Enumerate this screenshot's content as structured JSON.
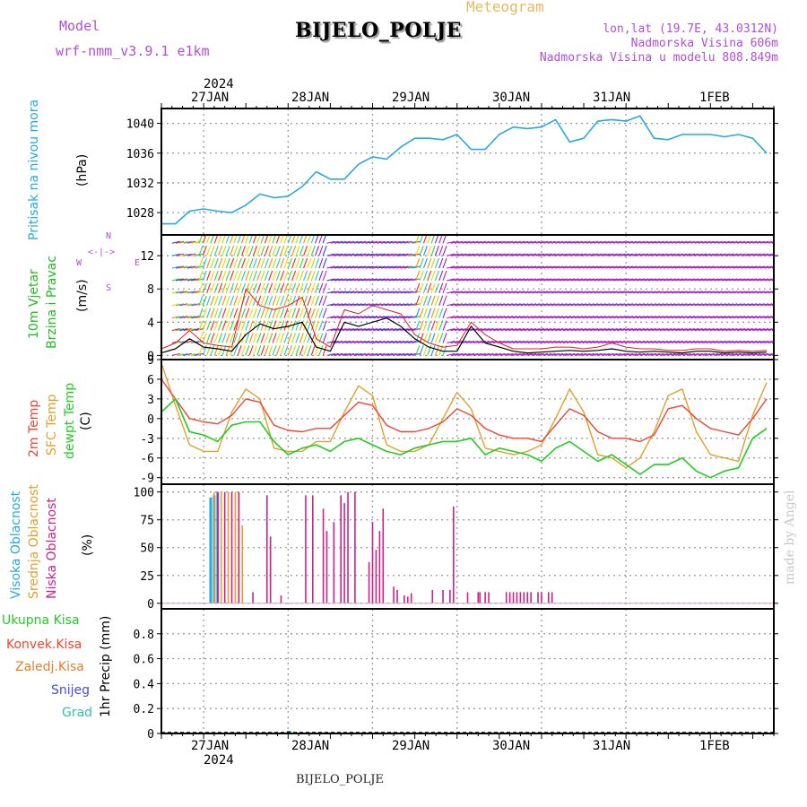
{
  "header": {
    "meteogram_label": "Meteogram",
    "station": "BIJELO_POLJE",
    "model_heading": "Model",
    "model_name": "wrf-nmm_v3.9.1 e1km",
    "lonlat": "lon,lat (19.7E, 43.0312N)",
    "elevation": "Nadmorska Visina 606m",
    "model_elevation": "Nadmorska Visina u modelu 808.849m"
  },
  "footer": {
    "station": "BIJELO_POLJE"
  },
  "credit": "made by Angel",
  "colors": {
    "pressure": "#29a8e0",
    "wind_title": "#22bb22",
    "temp2m": "#ee4433",
    "sfc_temp": "#e0a030",
    "dewpt": "#22cc22",
    "high_cloud": "#29a8e0",
    "mid_cloud": "#e0a030",
    "low_cloud": "#cc2288",
    "legend_purple": "#b04fd6"
  },
  "time_axis": {
    "year": "2024",
    "labels": [
      "27JAN",
      "28JAN",
      "29JAN",
      "30JAN",
      "31JAN",
      "1FEB"
    ]
  },
  "chart_data": [
    {
      "type": "line",
      "panel": "pressure",
      "ylabel_lines": [
        "Pritisak na nivou mora",
        "(hPa)"
      ],
      "ylim": [
        1025,
        1042
      ],
      "yticks": [
        1028,
        1032,
        1036,
        1040
      ],
      "grid": true,
      "x_unit": "hours from 26JAN 12 UTC",
      "series": [
        {
          "name": "Pritisak na nivou mora",
          "x": [
            0,
            4,
            8,
            12,
            16,
            20,
            24,
            28,
            32,
            36,
            40,
            44,
            48,
            52,
            56,
            60,
            64,
            68,
            72,
            76,
            80,
            84,
            88,
            92,
            96,
            100,
            104,
            108,
            112,
            116,
            120,
            124,
            128,
            132,
            136,
            140,
            144,
            148,
            152,
            156,
            160,
            164,
            168,
            172
          ],
          "values": [
            1026.5,
            1026.5,
            1028.2,
            1028.5,
            1028.2,
            1028.0,
            1029.0,
            1030.5,
            1030.0,
            1030.2,
            1031.5,
            1033.5,
            1032.5,
            1032.5,
            1034.5,
            1035.5,
            1035.2,
            1036.8,
            1038.0,
            1038.0,
            1037.8,
            1038.5,
            1036.5,
            1036.5,
            1038.5,
            1039.5,
            1039.3,
            1039.5,
            1040.5,
            1037.5,
            1038.0,
            1040.3,
            1040.5,
            1040.3,
            1041.0,
            1038.0,
            1037.8,
            1038.5,
            1038.5,
            1038.5,
            1038.2,
            1038.5,
            1038.0,
            1036.0
          ]
        }
      ]
    },
    {
      "type": "line",
      "panel": "wind",
      "ylabel_lines": [
        "10m Vjetar",
        "Brzina i Pravac",
        "(m/s)"
      ],
      "direction_key": [
        "N",
        "W",
        "E",
        "S"
      ],
      "ylim": [
        -0.5,
        14.5
      ],
      "yticks": [
        0,
        4,
        8,
        12
      ],
      "grid": true,
      "x_unit": "hours from 26JAN 12 UTC",
      "series": [
        {
          "name": "Brzina",
          "x": [
            0,
            4,
            8,
            12,
            16,
            20,
            24,
            28,
            32,
            36,
            40,
            44,
            48,
            52,
            56,
            60,
            64,
            68,
            72,
            76,
            80,
            84,
            88,
            92,
            96,
            100,
            104,
            108,
            112,
            116,
            120,
            124,
            128,
            132,
            136,
            140,
            144,
            148,
            152,
            156,
            160,
            164,
            168,
            172
          ],
          "values": [
            0.3,
            0.8,
            2.0,
            1.0,
            0.8,
            0.5,
            2.5,
            3.8,
            3.2,
            3.5,
            4.0,
            1.0,
            0.5,
            4.0,
            3.5,
            4.0,
            4.5,
            3.5,
            2.0,
            1.0,
            0.5,
            0.5,
            3.5,
            1.5,
            1.0,
            0.5,
            0.3,
            0.4,
            0.5,
            0.6,
            0.5,
            0.6,
            0.8,
            0.5,
            0.4,
            0.5,
            0.4,
            0.3,
            0.5,
            0.5,
            0.3,
            0.4,
            0.3,
            0.4
          ]
        },
        {
          "name": "Udari",
          "x": [
            0,
            4,
            8,
            12,
            16,
            20,
            24,
            28,
            32,
            36,
            40,
            44,
            48,
            52,
            56,
            60,
            64,
            68,
            72,
            76,
            80,
            84,
            88,
            92,
            96,
            100,
            104,
            108,
            112,
            116,
            120,
            124,
            128,
            132,
            136,
            140,
            144,
            148,
            152,
            156,
            160,
            164,
            168,
            172
          ],
          "values": [
            0.8,
            1.5,
            3.0,
            1.5,
            1.2,
            1.0,
            8.0,
            6.0,
            5.5,
            6.0,
            7.0,
            2.0,
            1.0,
            5.5,
            5.0,
            6.0,
            5.5,
            5.0,
            2.5,
            1.5,
            1.0,
            1.2,
            4.0,
            2.5,
            1.5,
            0.8,
            0.8,
            0.8,
            1.0,
            1.0,
            0.8,
            1.0,
            1.5,
            1.0,
            0.8,
            0.8,
            0.6,
            0.6,
            0.8,
            0.8,
            0.5,
            0.6,
            0.5,
            0.6
          ]
        }
      ]
    },
    {
      "type": "line",
      "panel": "temperature",
      "ylabel_lines": [
        "2m Temp",
        "SFC Temp",
        "dewpt Temp",
        "(C)"
      ],
      "ylim": [
        -10,
        9
      ],
      "yticks": [
        -9,
        -6,
        -3,
        0,
        3,
        6,
        9
      ],
      "grid": true,
      "x_unit": "hours from 26JAN 12 UTC",
      "series": [
        {
          "name": "2m Temp",
          "x": [
            0,
            4,
            8,
            12,
            16,
            20,
            24,
            28,
            32,
            36,
            40,
            44,
            48,
            52,
            56,
            60,
            64,
            68,
            72,
            76,
            80,
            84,
            88,
            92,
            96,
            100,
            104,
            108,
            112,
            116,
            120,
            124,
            128,
            132,
            136,
            140,
            144,
            148,
            152,
            156,
            160,
            164,
            168,
            172
          ],
          "values": [
            6.0,
            3.0,
            0.0,
            -0.5,
            -0.8,
            0.5,
            3.0,
            2.5,
            -1.0,
            -1.8,
            -2.0,
            -1.5,
            -1.5,
            0.5,
            2.5,
            2.0,
            -1.0,
            -2.0,
            -2.0,
            -1.5,
            -0.5,
            1.5,
            0.5,
            -1.5,
            -2.5,
            -3.0,
            -3.0,
            -3.5,
            -1.0,
            1.5,
            0.5,
            -2.0,
            -3.0,
            -3.0,
            -3.5,
            -2.5,
            1.5,
            2.0,
            0.0,
            -1.5,
            -2.0,
            -2.5,
            0.0,
            3.0
          ]
        },
        {
          "name": "SFC Temp",
          "x": [
            0,
            4,
            8,
            12,
            16,
            20,
            24,
            28,
            32,
            36,
            40,
            44,
            48,
            52,
            56,
            60,
            64,
            68,
            72,
            76,
            80,
            84,
            88,
            92,
            96,
            100,
            104,
            108,
            112,
            116,
            120,
            124,
            128,
            132,
            136,
            140,
            144,
            148,
            152,
            156,
            160,
            164,
            168,
            172
          ],
          "values": [
            8.5,
            2.0,
            -4.0,
            -5.0,
            -5.0,
            1.0,
            4.5,
            3.0,
            -4.5,
            -5.0,
            -5.0,
            -3.5,
            -3.5,
            1.0,
            5.0,
            3.5,
            -4.0,
            -5.0,
            -5.0,
            -4.0,
            0.0,
            4.0,
            1.5,
            -4.5,
            -5.0,
            -5.5,
            -5.0,
            -4.0,
            0.0,
            4.5,
            1.0,
            -5.5,
            -6.0,
            -7.5,
            -6.0,
            -2.0,
            3.5,
            4.5,
            -2.0,
            -5.5,
            -6.0,
            -6.5,
            0.5,
            5.5
          ]
        },
        {
          "name": "dewpt Temp",
          "x": [
            0,
            4,
            8,
            12,
            16,
            20,
            24,
            28,
            32,
            36,
            40,
            44,
            48,
            52,
            56,
            60,
            64,
            68,
            72,
            76,
            80,
            84,
            88,
            92,
            96,
            100,
            104,
            108,
            112,
            116,
            120,
            124,
            128,
            132,
            136,
            140,
            144,
            148,
            152,
            156,
            160,
            164,
            168,
            172
          ],
          "values": [
            1.0,
            3.0,
            -2.0,
            -2.5,
            -3.5,
            -1.0,
            -0.5,
            -0.5,
            -3.5,
            -5.5,
            -4.5,
            -4.0,
            -5.0,
            -3.5,
            -3.0,
            -4.0,
            -5.0,
            -5.5,
            -4.5,
            -4.0,
            -3.5,
            -3.5,
            -3.0,
            -5.5,
            -4.5,
            -5.0,
            -5.5,
            -6.5,
            -4.5,
            -3.5,
            -5.0,
            -6.5,
            -5.5,
            -7.0,
            -8.5,
            -7.0,
            -7.0,
            -6.0,
            -8.0,
            -9.0,
            -8.0,
            -7.5,
            -3.0,
            -1.5
          ]
        }
      ]
    },
    {
      "type": "bar",
      "panel": "cloud",
      "ylabel_lines": [
        "Visoka Oblacnost",
        "Srednja Oblacnost",
        "Niska Oblacnost",
        "(%)"
      ],
      "ylim": [
        -5,
        107
      ],
      "yticks": [
        0,
        25,
        50,
        75,
        100
      ],
      "grid": true,
      "x_unit": "hours from 26JAN 12 UTC",
      "series": [
        {
          "name": "Visoka Oblacnost",
          "x": [
            14,
            15,
            16
          ],
          "values": [
            95,
            97,
            100
          ]
        },
        {
          "name": "Srednja Oblacnost",
          "x": [
            15,
            17,
            19,
            21,
            22,
            23
          ],
          "values": [
            100,
            100,
            100,
            100,
            100,
            70
          ]
        },
        {
          "name": "Niska Oblacnost",
          "x": [
            16,
            18,
            20,
            22,
            26,
            30,
            31,
            34,
            41,
            43,
            46,
            47,
            49,
            51,
            52,
            53,
            55,
            59,
            60,
            61,
            62,
            63,
            66,
            67,
            69,
            70,
            71,
            77,
            80,
            82,
            83,
            87,
            90,
            90.5,
            92,
            93,
            98,
            99,
            100,
            101,
            102,
            103,
            104,
            105,
            107,
            108,
            110,
            111
          ],
          "values": [
            100,
            100,
            100,
            100,
            10,
            97,
            60,
            7,
            97,
            97,
            85,
            65,
            73,
            97,
            90,
            100,
            100,
            37,
            73,
            48,
            65,
            85,
            15,
            12,
            7,
            6,
            9,
            12,
            12,
            12,
            87,
            10,
            10,
            10,
            10,
            10,
            10,
            10,
            10,
            10,
            10,
            10,
            10,
            10,
            10,
            10,
            10,
            10
          ]
        }
      ]
    },
    {
      "type": "bar",
      "panel": "precip",
      "ylabel_lines": [
        "1hr Precip (mm)"
      ],
      "legend": [
        "Ukupna Kisa",
        "Konvek.Kisa",
        "Zaledj.Kisa",
        "Snijeg",
        "Grad"
      ],
      "ylim": [
        0,
        1.0
      ],
      "yticks": [
        0,
        0.2,
        0.4,
        0.6,
        0.8
      ],
      "grid": true,
      "x_unit": "hours from 26JAN 12 UTC",
      "series": [
        {
          "name": "Ukupna Kisa",
          "x": [
            15,
            36.5
          ],
          "values": [
            0.01,
            0.02
          ]
        },
        {
          "name": "Snijeg",
          "x": [
            36
          ],
          "values": [
            0.02
          ]
        }
      ]
    }
  ]
}
